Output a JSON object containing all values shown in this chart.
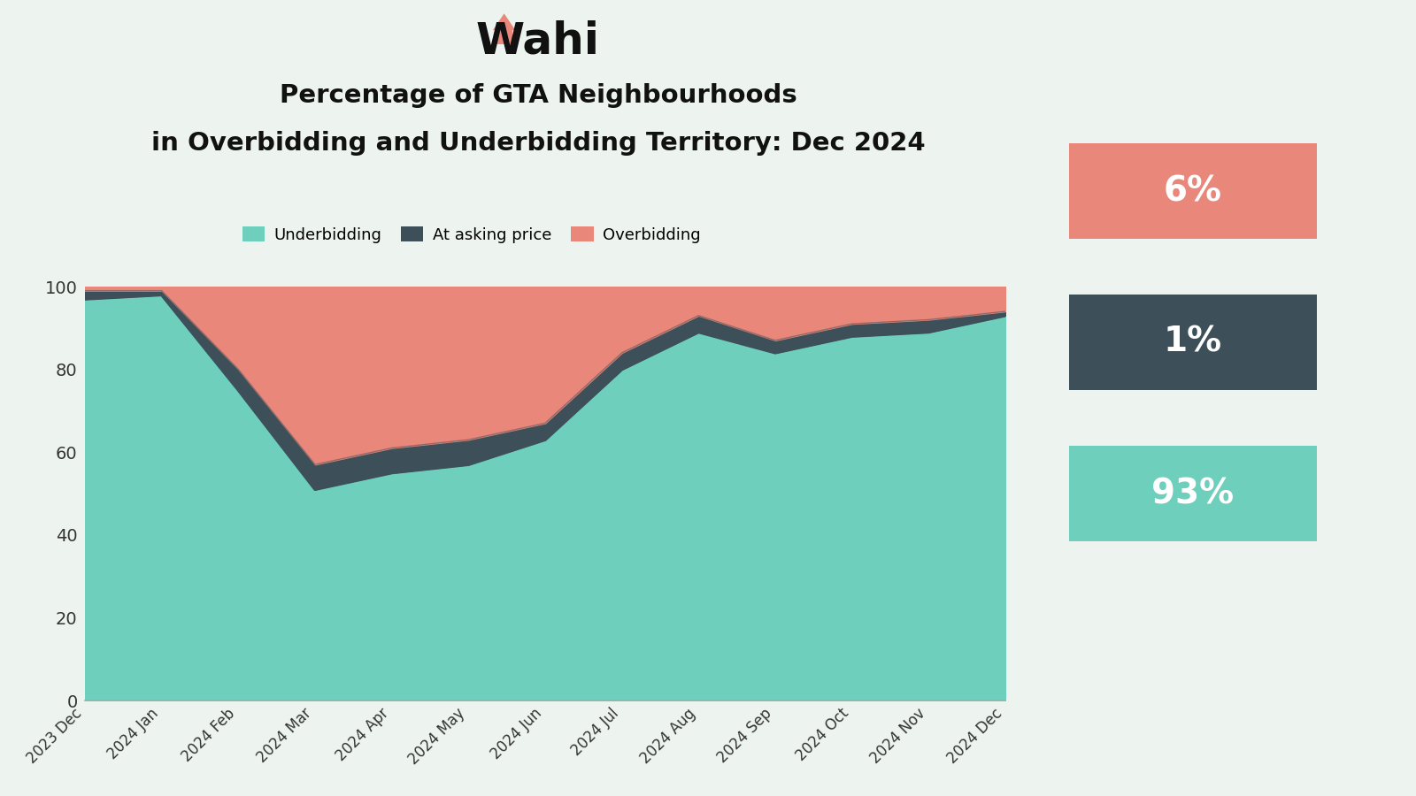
{
  "months": [
    "2023 Dec",
    "2024 Jan",
    "2024 Feb",
    "2024 Mar",
    "2024 Apr",
    "2024 May",
    "2024 Jun",
    "2024 Jul",
    "2024 Aug",
    "2024 Sep",
    "2024 Oct",
    "2024 Nov",
    "2024 Dec"
  ],
  "underbidding": [
    97,
    98,
    75,
    51,
    55,
    57,
    63,
    80,
    89,
    84,
    88,
    89,
    93
  ],
  "at_asking": [
    2,
    1,
    5,
    6,
    6,
    6,
    4,
    4,
    4,
    3,
    3,
    3,
    1
  ],
  "overbidding": [
    1,
    1,
    20,
    43,
    39,
    37,
    33,
    16,
    7,
    13,
    9,
    8,
    6
  ],
  "underbidding_color": "#6ecfbd",
  "at_asking_color": "#3d5059",
  "overbidding_color": "#e8877a",
  "bg_color": "#edf4ef",
  "grid_color": "#cccccc",
  "title_line1": "Percentage of GTA Neighbourhoods",
  "title_line2": "in Overbidding and Underbidding Territory: Dec 2024",
  "badge_overbidding": "6%",
  "badge_at_asking": "1%",
  "badge_underbidding": "93%",
  "legend_labels": [
    "Underbidding",
    "At asking price",
    "Overbidding"
  ],
  "ylim": [
    0,
    100
  ],
  "yticks": [
    0,
    20,
    40,
    60,
    80,
    100
  ],
  "wahi_text": "Wahi",
  "house_color": "#e8877a"
}
